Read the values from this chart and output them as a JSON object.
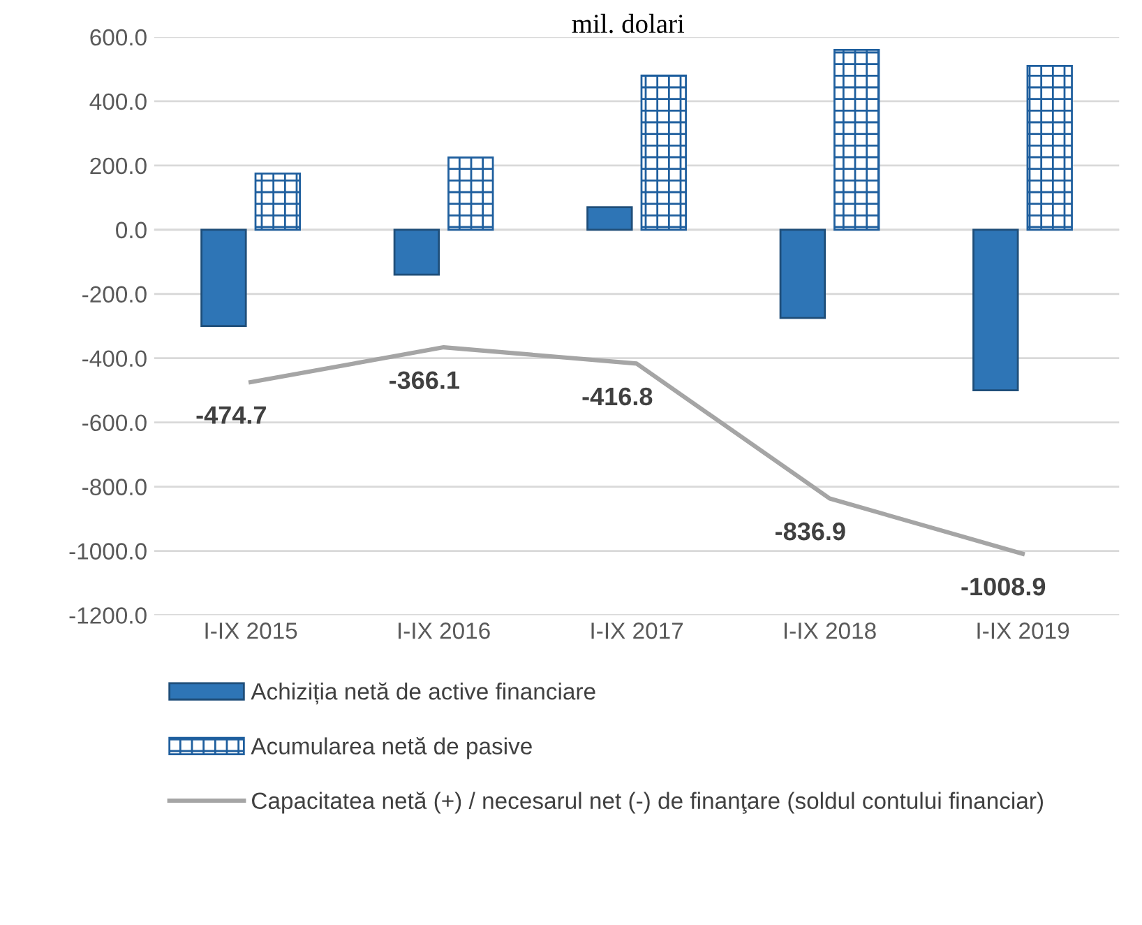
{
  "chart_data": {
    "type": "bar",
    "title": "mil. dolari",
    "categories": [
      "I-IX 2015",
      "I-IX 2016",
      "I-IX 2017",
      "I-IX 2018",
      "I-IX 2019"
    ],
    "series": [
      {
        "name": "Achiziția netă de active financiare",
        "color": "#2e75b6",
        "values": [
          -300,
          -140,
          70,
          -275,
          -500
        ]
      },
      {
        "name": "Acumularea netă de pasive",
        "color": "#1f5f9e",
        "values": [
          175,
          225,
          480,
          560,
          510
        ]
      },
      {
        "name": "Capacitatea netă (+) / necesarul net (-) de finanţare (soldul contului financiar)",
        "type": "line",
        "color": "#a5a5a5",
        "values": [
          -474.7,
          -366.1,
          -416.8,
          -836.9,
          -1008.9
        ],
        "value_labels": [
          "-474.7",
          "-366.1",
          "-416.8",
          "-836.9",
          "-1008.9"
        ]
      }
    ],
    "ylim": [
      -1200,
      600
    ],
    "yticks": [
      {
        "value": -1200,
        "label": "-1200.0"
      },
      {
        "value": -1000,
        "label": "-1000.0"
      },
      {
        "value": -800,
        "label": "-800.0"
      },
      {
        "value": -600,
        "label": "-600.0"
      },
      {
        "value": -400,
        "label": "-400.0"
      },
      {
        "value": -200,
        "label": "-200.0"
      },
      {
        "value": 0,
        "label": "0.0"
      },
      {
        "value": 200,
        "label": "200.0"
      },
      {
        "value": 400,
        "label": "400.0"
      },
      {
        "value": 600,
        "label": "600.0"
      }
    ],
    "grid": "y",
    "legend": "bottom"
  }
}
